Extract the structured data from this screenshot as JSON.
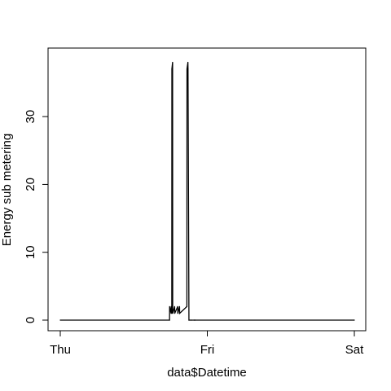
{
  "chart_data": {
    "type": "line",
    "title": "",
    "xlabel": "data$Datetime",
    "ylabel": "Energy sub metering",
    "x_ticks": [
      "Thu",
      "Fri",
      "Sat"
    ],
    "y_ticks": [
      "0",
      "10",
      "20",
      "30"
    ],
    "xlim": [
      "Thu 00:00",
      "Sat 00:00"
    ],
    "ylim": [
      0,
      38
    ],
    "grid": false,
    "series": [
      {
        "color": "#000000",
        "x": [
          "Thu 00:00",
          "Thu 17:50",
          "Thu 17:51",
          "Thu 18:05",
          "Thu 18:06",
          "Thu 18:12",
          "Thu 18:13",
          "Thu 18:20",
          "Thu 18:21",
          "Thu 18:40",
          "Thu 18:41",
          "Thu 19:10",
          "Thu 19:11",
          "Thu 19:28",
          "Thu 19:29",
          "Thu 20:40",
          "Thu 20:41",
          "Thu 20:50",
          "Thu 20:51",
          "Thu 21:00",
          "Thu 21:01",
          "Thu 21:20",
          "Thu 21:21",
          "Thu 21:50",
          "Thu 21:51",
          "Thu 22:00",
          "Thu 22:01",
          "Sat 00:00"
        ],
        "y": [
          0,
          0,
          2,
          1,
          2,
          1,
          37,
          38,
          1,
          2,
          1,
          2,
          1,
          2,
          1,
          2,
          37,
          38,
          37,
          0,
          0,
          0,
          0,
          0,
          0,
          0,
          0,
          0
        ]
      }
    ]
  }
}
